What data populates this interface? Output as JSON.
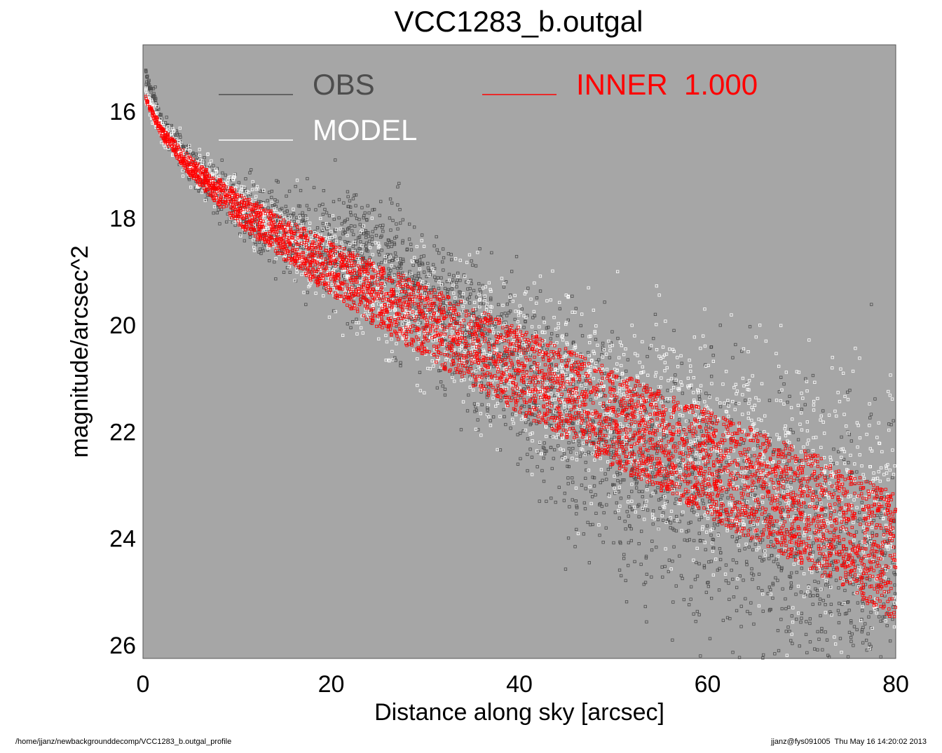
{
  "chart_data": {
    "type": "scatter",
    "title": "VCC1283_b.outgal",
    "xlabel": "Distance along sky [arcsec]",
    "ylabel": "magnitude/arcsec^2",
    "xlim": [
      0,
      80
    ],
    "ylim": [
      26.25,
      14.75
    ],
    "y_inverted": true,
    "x_ticks": [
      "0",
      "20",
      "40",
      "60",
      "80"
    ],
    "y_ticks": [
      "16",
      "18",
      "20",
      "22",
      "24",
      "26"
    ],
    "grid": false,
    "plot_background": "#a6a6a6",
    "legend_placement": "top",
    "series": [
      {
        "name": "OBS",
        "color": "#4d4d4d",
        "description_points": {
          "x": [
            0.3,
            2,
            5,
            8,
            10,
            12,
            15,
            18,
            20,
            22,
            24,
            26,
            28,
            30,
            35,
            40,
            45,
            50,
            55,
            60,
            65,
            70,
            75,
            80
          ],
          "y": [
            15.3,
            16.2,
            17.0,
            17.5,
            17.75,
            17.95,
            18.2,
            18.45,
            18.55,
            18.6,
            18.7,
            18.9,
            19.15,
            19.5,
            20.3,
            21.0,
            21.7,
            22.3,
            22.9,
            23.4,
            23.9,
            24.3,
            24.7,
            25.1
          ]
        }
      },
      {
        "name": "MODEL",
        "color": "#ffffff",
        "description_points": {
          "x": [
            0.3,
            2,
            5,
            8,
            10,
            15,
            20,
            25,
            30,
            35,
            40,
            45,
            50,
            55,
            60,
            65,
            70,
            75,
            80
          ],
          "y": [
            15.7,
            16.35,
            16.95,
            17.4,
            17.7,
            18.35,
            18.9,
            19.4,
            19.85,
            20.3,
            20.75,
            21.15,
            21.55,
            21.95,
            22.35,
            22.7,
            23.05,
            23.4,
            23.75
          ]
        }
      },
      {
        "name": "INNER  1.000",
        "color": "#ff0000",
        "upper_edge": {
          "x": [
            0.3,
            2,
            5,
            8,
            10,
            15,
            20,
            25,
            30,
            35,
            40,
            45,
            50,
            55,
            60,
            65,
            70,
            75,
            80
          ],
          "y": [
            15.7,
            16.3,
            16.85,
            17.25,
            17.5,
            18.0,
            18.45,
            18.85,
            19.25,
            19.65,
            20.05,
            20.45,
            20.85,
            21.25,
            21.6,
            21.95,
            22.3,
            22.7,
            23.1
          ]
        },
        "lower_edge": {
          "x": [
            0.3,
            2,
            5,
            8,
            10,
            15,
            20,
            25,
            30,
            35,
            40,
            45,
            50,
            55,
            60,
            65,
            70,
            75,
            80
          ],
          "y": [
            15.8,
            16.5,
            17.2,
            17.75,
            18.1,
            18.8,
            19.45,
            20.05,
            20.6,
            21.15,
            21.65,
            22.15,
            22.65,
            23.1,
            23.6,
            24.05,
            24.5,
            25.0,
            25.55
          ]
        }
      }
    ]
  },
  "footer": {
    "left_path": "/home/jjanz/newbackgrounddecomp/VCC1283_b.outgal_profile",
    "right_stamp": "jjanz@fys091005  Thu May 16 14:20:02 2013"
  }
}
